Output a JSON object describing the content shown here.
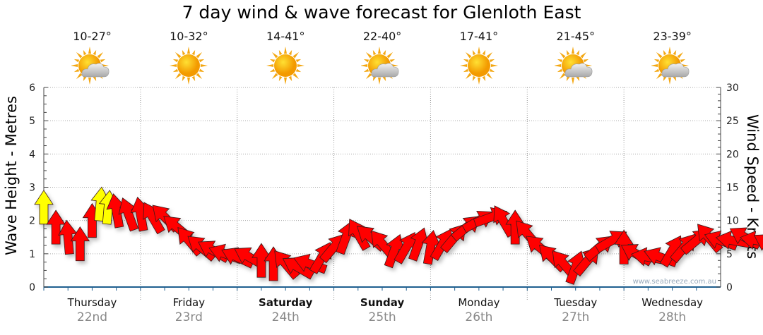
{
  "title": "7 day wind & wave forecast for Glenloth East",
  "forecast": [
    {
      "temp": "10-27°",
      "icon": "partly-cloudy-icon"
    },
    {
      "temp": "10-32°",
      "icon": "sunny-icon"
    },
    {
      "temp": "14-41°",
      "icon": "sunny-icon"
    },
    {
      "temp": "22-40°",
      "icon": "partly-cloudy-icon"
    },
    {
      "temp": "17-41°",
      "icon": "sunny-icon"
    },
    {
      "temp": "21-45°",
      "icon": "partly-cloudy-icon"
    },
    {
      "temp": "23-39°",
      "icon": "partly-cloudy-icon"
    }
  ],
  "days": [
    {
      "name": "Thursday",
      "date": "22nd",
      "bold": false
    },
    {
      "name": "Friday",
      "date": "23rd",
      "bold": false
    },
    {
      "name": "Saturday",
      "date": "24th",
      "bold": true
    },
    {
      "name": "Sunday",
      "date": "25th",
      "bold": true
    },
    {
      "name": "Monday",
      "date": "26th",
      "bold": false
    },
    {
      "name": "Tuesday",
      "date": "27th",
      "bold": false
    },
    {
      "name": "Wednesday",
      "date": "28th",
      "bold": false
    }
  ],
  "watermark": "www.seabreeze.com.au",
  "colors": {
    "strong": "#ff0000",
    "light": "#ffff00",
    "axis": "#1f5f8f"
  },
  "chart_data": {
    "type": "scatter",
    "title": "7 day wind & wave forecast for Glenloth East",
    "ylabel": "Wave Height - Metres",
    "y2label": "Wind Speed - Knots",
    "ylim": [
      0,
      6
    ],
    "y2lim": [
      0,
      30
    ],
    "yticks": [
      "0",
      "1",
      "2",
      "3",
      "4",
      "5",
      "6"
    ],
    "y2ticks": [
      "0",
      "5",
      "10",
      "15",
      "20",
      "25",
      "30"
    ],
    "grid": true,
    "x_unit": "hours from Thursday 00:00",
    "wind": [
      {
        "t": 0,
        "kn": 12,
        "dir": 0,
        "c": "light"
      },
      {
        "t": 3,
        "kn": 9,
        "dir": 0,
        "c": "strong"
      },
      {
        "t": 6,
        "kn": 7.5,
        "dir": -5,
        "c": "strong"
      },
      {
        "t": 9,
        "kn": 6.5,
        "dir": 0,
        "c": "strong"
      },
      {
        "t": 12,
        "kn": 10,
        "dir": 0,
        "c": "strong"
      },
      {
        "t": 14,
        "kn": 12.5,
        "dir": 5,
        "c": "light"
      },
      {
        "t": 16,
        "kn": 12,
        "dir": 5,
        "c": "light"
      },
      {
        "t": 18,
        "kn": 11.5,
        "dir": -10,
        "c": "strong"
      },
      {
        "t": 21,
        "kn": 11,
        "dir": -20,
        "c": "strong"
      },
      {
        "t": 24,
        "kn": 11,
        "dir": -10,
        "c": "strong"
      },
      {
        "t": 27,
        "kn": 10.5,
        "dir": -30,
        "c": "strong"
      },
      {
        "t": 30,
        "kn": 10.5,
        "dir": -45,
        "c": "strong"
      },
      {
        "t": 33,
        "kn": 9,
        "dir": -50,
        "c": "strong"
      },
      {
        "t": 36,
        "kn": 7,
        "dir": -40,
        "c": "strong"
      },
      {
        "t": 39,
        "kn": 6,
        "dir": -50,
        "c": "strong"
      },
      {
        "t": 42,
        "kn": 5.5,
        "dir": -60,
        "c": "strong"
      },
      {
        "t": 45,
        "kn": 5,
        "dir": -70,
        "c": "strong"
      },
      {
        "t": 48,
        "kn": 4.5,
        "dir": -65,
        "c": "strong"
      },
      {
        "t": 51,
        "kn": 4.5,
        "dir": -60,
        "c": "strong"
      },
      {
        "t": 54,
        "kn": 4,
        "dir": 0,
        "c": "strong"
      },
      {
        "t": 57,
        "kn": 3.5,
        "dir": 0,
        "c": "strong"
      },
      {
        "t": 60,
        "kn": 3.5,
        "dir": -40,
        "c": "strong"
      },
      {
        "t": 63,
        "kn": 3,
        "dir": -60,
        "c": "strong"
      },
      {
        "t": 66,
        "kn": 3.5,
        "dir": -70,
        "c": "strong"
      },
      {
        "t": 69,
        "kn": 4.5,
        "dir": 30,
        "c": "strong"
      },
      {
        "t": 72,
        "kn": 6,
        "dir": 40,
        "c": "strong"
      },
      {
        "t": 75,
        "kn": 7.5,
        "dir": 20,
        "c": "strong"
      },
      {
        "t": 78,
        "kn": 8,
        "dir": -30,
        "c": "strong"
      },
      {
        "t": 81,
        "kn": 7.5,
        "dir": -50,
        "c": "strong"
      },
      {
        "t": 84,
        "kn": 6.5,
        "dir": -40,
        "c": "strong"
      },
      {
        "t": 87,
        "kn": 5.5,
        "dir": 20,
        "c": "strong"
      },
      {
        "t": 90,
        "kn": 6,
        "dir": 30,
        "c": "strong"
      },
      {
        "t": 93,
        "kn": 6.5,
        "dir": 20,
        "c": "strong"
      },
      {
        "t": 96,
        "kn": 6,
        "dir": 10,
        "c": "strong"
      },
      {
        "t": 99,
        "kn": 6.5,
        "dir": 30,
        "c": "strong"
      },
      {
        "t": 102,
        "kn": 7.5,
        "dir": 40,
        "c": "strong"
      },
      {
        "t": 105,
        "kn": 9,
        "dir": 50,
        "c": "strong"
      },
      {
        "t": 108,
        "kn": 10,
        "dir": 60,
        "c": "strong"
      },
      {
        "t": 111,
        "kn": 10.5,
        "dir": 70,
        "c": "strong"
      },
      {
        "t": 114,
        "kn": 10,
        "dir": -30,
        "c": "strong"
      },
      {
        "t": 117,
        "kn": 9,
        "dir": 0,
        "c": "strong"
      },
      {
        "t": 120,
        "kn": 8,
        "dir": -40,
        "c": "strong"
      },
      {
        "t": 123,
        "kn": 6,
        "dir": -50,
        "c": "strong"
      },
      {
        "t": 126,
        "kn": 4.5,
        "dir": -45,
        "c": "strong"
      },
      {
        "t": 129,
        "kn": 3.5,
        "dir": -40,
        "c": "strong"
      },
      {
        "t": 132,
        "kn": 3,
        "dir": 20,
        "c": "strong"
      },
      {
        "t": 135,
        "kn": 4,
        "dir": 40,
        "c": "strong"
      },
      {
        "t": 138,
        "kn": 6,
        "dir": 50,
        "c": "strong"
      },
      {
        "t": 141,
        "kn": 7,
        "dir": 60,
        "c": "strong"
      },
      {
        "t": 144,
        "kn": 6,
        "dir": 0,
        "c": "strong"
      },
      {
        "t": 147,
        "kn": 5,
        "dir": -60,
        "c": "strong"
      },
      {
        "t": 150,
        "kn": 4.5,
        "dir": -80,
        "c": "strong"
      },
      {
        "t": 153,
        "kn": 4.5,
        "dir": -70,
        "c": "strong"
      },
      {
        "t": 156,
        "kn": 5.5,
        "dir": 30,
        "c": "strong"
      },
      {
        "t": 159,
        "kn": 6,
        "dir": 40,
        "c": "strong"
      },
      {
        "t": 162,
        "kn": 7,
        "dir": 50,
        "c": "strong"
      },
      {
        "t": 165,
        "kn": 7.5,
        "dir": -40,
        "c": "strong"
      },
      {
        "t": 168,
        "kn": 7,
        "dir": -70,
        "c": "strong"
      },
      {
        "t": 171,
        "kn": 7,
        "dir": -80,
        "c": "strong"
      },
      {
        "t": 174,
        "kn": 7.5,
        "dir": -60,
        "c": "strong"
      },
      {
        "t": 177,
        "kn": 7,
        "dir": -80,
        "c": "strong"
      },
      {
        "t": 180,
        "kn": 6.5,
        "dir": -60,
        "c": "strong"
      },
      {
        "t": 183,
        "kn": 6.5,
        "dir": -40,
        "c": "strong"
      },
      {
        "t": 186,
        "kn": 6,
        "dir": -50,
        "c": "strong"
      },
      {
        "t": 189,
        "kn": 7,
        "dir": 30,
        "c": "strong"
      },
      {
        "t": 192,
        "kn": 8,
        "dir": 40,
        "c": "strong"
      },
      {
        "t": 195,
        "kn": 9,
        "dir": 45,
        "c": "strong"
      },
      {
        "t": 198,
        "kn": 10,
        "dir": 40,
        "c": "strong"
      },
      {
        "t": 201,
        "kn": 11,
        "dir": 30,
        "c": "strong"
      },
      {
        "t": 204,
        "kn": 11.5,
        "dir": 20,
        "c": "strong"
      },
      {
        "t": 207,
        "kn": 10.5,
        "dir": 0,
        "c": "strong"
      },
      {
        "t": 210,
        "kn": 10,
        "dir": -30,
        "c": "strong"
      },
      {
        "t": 213,
        "kn": 9.5,
        "dir": -40,
        "c": "strong"
      }
    ]
  }
}
